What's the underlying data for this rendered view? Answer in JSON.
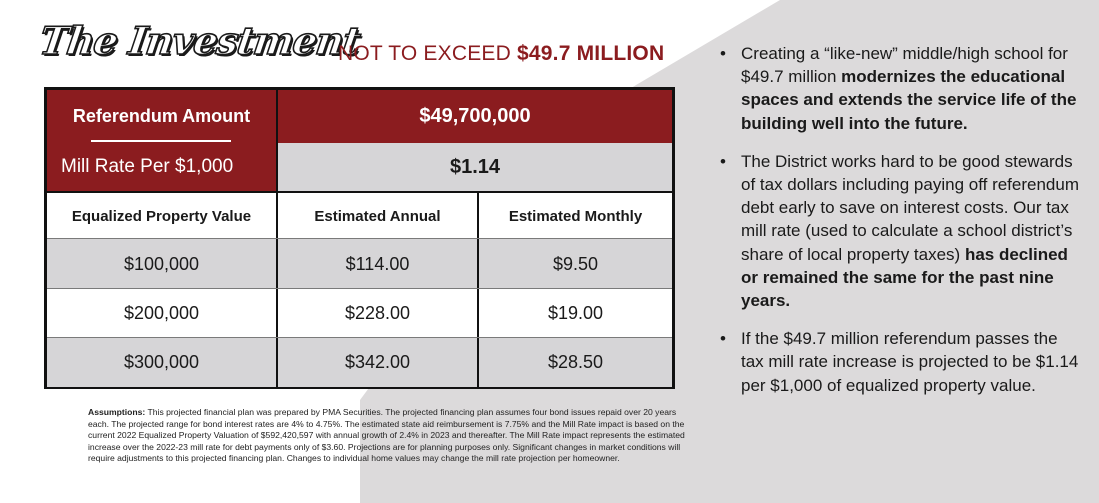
{
  "header": {
    "title": "The Investment",
    "subtitle_prefix": "NOT TO EXCEED ",
    "subtitle_amount": "$49.7 MILLION"
  },
  "table": {
    "referendum_label": "Referendum Amount",
    "referendum_value": "$49,700,000",
    "mill_rate_label": "Mill Rate Per $1,000",
    "mill_rate_value": "$1.14",
    "headers": [
      "Equalized Property Value",
      "Estimated Annual",
      "Estimated Monthly"
    ],
    "rows": [
      [
        "$100,000",
        "$114.00",
        "$9.50"
      ],
      [
        "$200,000",
        "$228.00",
        "$19.00"
      ],
      [
        "$300,000",
        "$342.00",
        "$28.50"
      ]
    ]
  },
  "assumptions": {
    "label": "Assumptions:",
    "text": " This projected financial plan was prepared by PMA Securities. The projected financing plan assumes four bond issues repaid over 20 years each. The projected range for bond interest rates are 4% to 4.75%. The estimated state aid reimbursement is 7.75% and the Mill Rate impact is based on the current 2022 Equalized Property Valuation of $592,420,597 with annual growth of 2.4% in 2023 and thereafter. The Mill Rate impact represents the estimated increase over the 2022-23 mill rate for debt payments only of $3.60. Projections are for planning purposes only. Significant changes in market conditions will require adjustments to this projected financing plan. Changes to individual home values may change the mill rate projection per homeowner."
  },
  "bullets": [
    {
      "normal": "Creating a “like-new” middle/high school for $49.7 million ",
      "bold": "modernizes the educational spaces and extends the service life of the building well into the future."
    },
    {
      "normal": "The District works hard to be good stewards of tax dollars including paying off referendum debt early to save on interest costs. Our tax mill rate (used to calculate a school district’s share of local property taxes) ",
      "bold": "has declined or remained the same for the past nine years."
    },
    {
      "normal": "If the $49.7 million referendum passes the tax mill rate increase is projected to be $1.14 per $1,000 of equalized property value.",
      "bold": ""
    }
  ],
  "bullet_glyph": "•",
  "colors": {
    "accent_red": "#8b1c1f",
    "table_grey": "#d6d5d7",
    "background_grey": "#dcdadb"
  }
}
